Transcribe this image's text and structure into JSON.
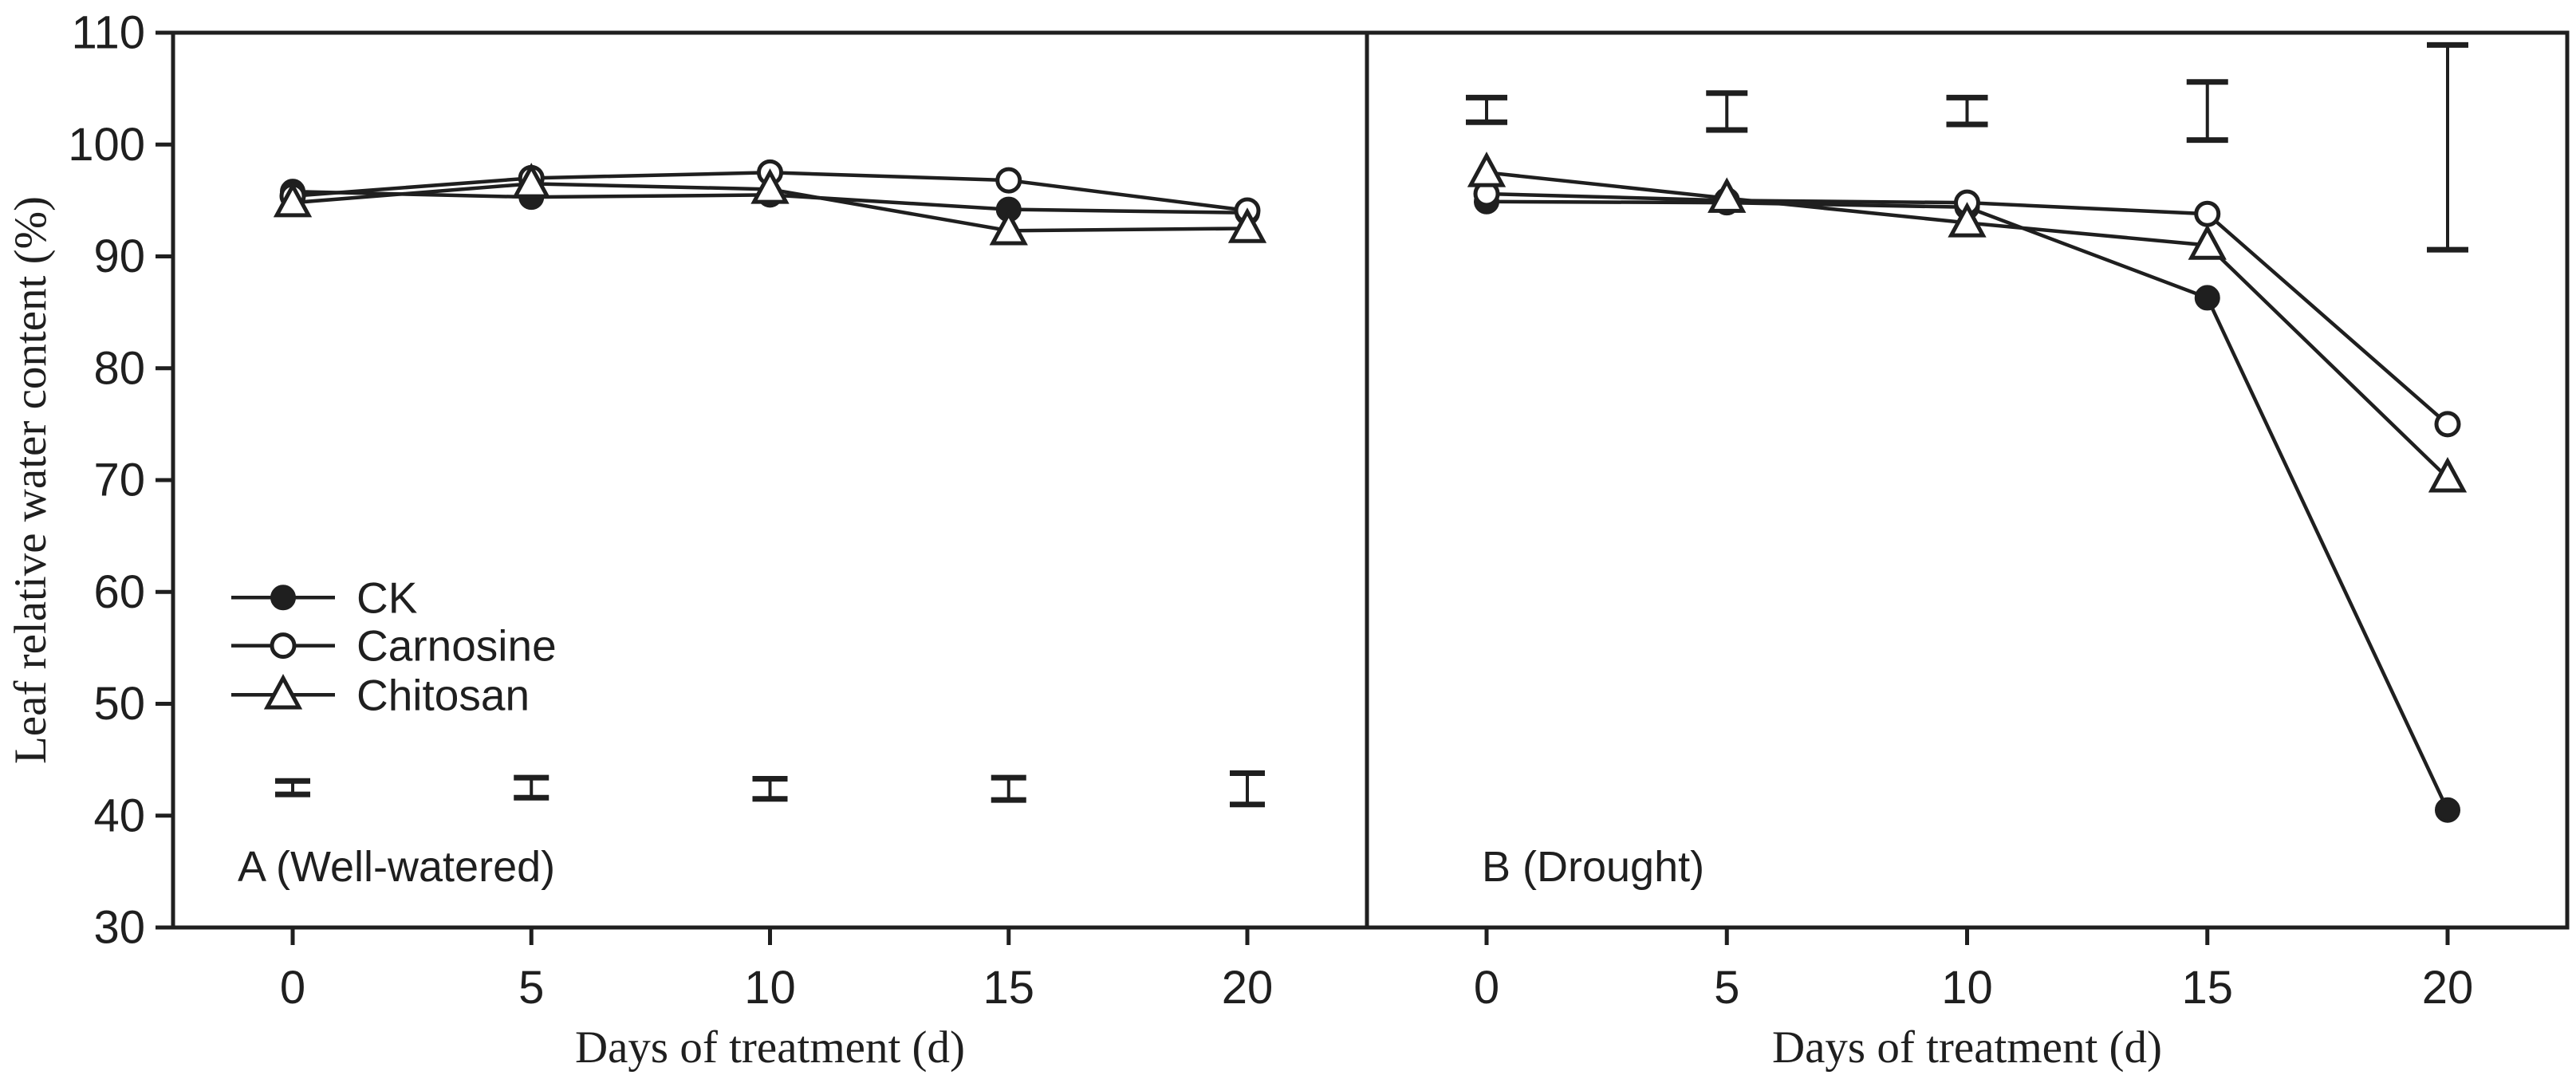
{
  "figure": {
    "background": "#ffffff",
    "ink_color": "#1f1f1f",
    "ylabel": "Leaf relative water content (%)",
    "xlabel": "Days of treatment (d)"
  },
  "legend": {
    "items": [
      {
        "label": "CK",
        "marker": "filled-circle-icon"
      },
      {
        "label": "Carnosine",
        "marker": "open-circle-icon"
      },
      {
        "label": "Chitosan",
        "marker": "open-triangle-icon"
      }
    ]
  },
  "axes": {
    "yticks": [
      "30",
      "40",
      "50",
      "60",
      "70",
      "80",
      "90",
      "100",
      "110"
    ],
    "xticks": [
      "0",
      "5",
      "10",
      "15",
      "20"
    ],
    "ylim": [
      30,
      110
    ],
    "xlim": [
      0,
      20
    ]
  },
  "chart_data": [
    {
      "type": "line",
      "panel_label": "A (Well-watered)",
      "xlabel": "Days of treatment (d)",
      "ylabel": "Leaf relative water content (%)",
      "x": [
        0,
        5,
        10,
        15,
        20
      ],
      "ylim": [
        30,
        110
      ],
      "yticks": [
        30,
        40,
        50,
        60,
        70,
        80,
        90,
        100,
        110
      ],
      "grid": false,
      "legend_position": "left-middle",
      "series": [
        {
          "name": "CK",
          "marker": "filled-circle",
          "values": [
            95.8,
            95.3,
            95.5,
            94.2,
            93.9
          ]
        },
        {
          "name": "Carnosine",
          "marker": "open-circle",
          "values": [
            95.4,
            97.0,
            97.5,
            96.8,
            94.1
          ]
        },
        {
          "name": "Chitosan",
          "marker": "open-triangle",
          "values": [
            94.8,
            96.5,
            96.0,
            92.3,
            92.5
          ]
        }
      ],
      "error_bars": [
        {
          "x": 0,
          "low": 41.9,
          "high": 43.1
        },
        {
          "x": 5,
          "low": 41.6,
          "high": 43.4
        },
        {
          "x": 10,
          "low": 41.5,
          "high": 43.3
        },
        {
          "x": 15,
          "low": 41.4,
          "high": 43.4
        },
        {
          "x": 20,
          "low": 41.0,
          "high": 43.8
        }
      ]
    },
    {
      "type": "line",
      "panel_label": "B (Drought)",
      "xlabel": "Days of treatment (d)",
      "ylabel": "Leaf relative water content (%)",
      "x": [
        0,
        5,
        10,
        15,
        20
      ],
      "ylim": [
        30,
        110
      ],
      "yticks": [
        30,
        40,
        50,
        60,
        70,
        80,
        90,
        100,
        110
      ],
      "grid": false,
      "series": [
        {
          "name": "CK",
          "marker": "filled-circle",
          "values": [
            94.9,
            94.8,
            94.4,
            86.3,
            40.5
          ]
        },
        {
          "name": "Carnosine",
          "marker": "open-circle",
          "values": [
            95.6,
            95.0,
            94.8,
            93.8,
            75.0
          ]
        },
        {
          "name": "Chitosan",
          "marker": "open-triangle",
          "values": [
            97.5,
            95.2,
            93.0,
            91.0,
            70.2
          ]
        }
      ],
      "error_bars": [
        {
          "x": 0,
          "low": 102.0,
          "high": 104.2
        },
        {
          "x": 5,
          "low": 101.3,
          "high": 104.6
        },
        {
          "x": 10,
          "low": 101.8,
          "high": 104.2
        },
        {
          "x": 15,
          "low": 100.4,
          "high": 105.6
        },
        {
          "x": 20,
          "low": 90.6,
          "high": 108.9
        }
      ]
    }
  ]
}
